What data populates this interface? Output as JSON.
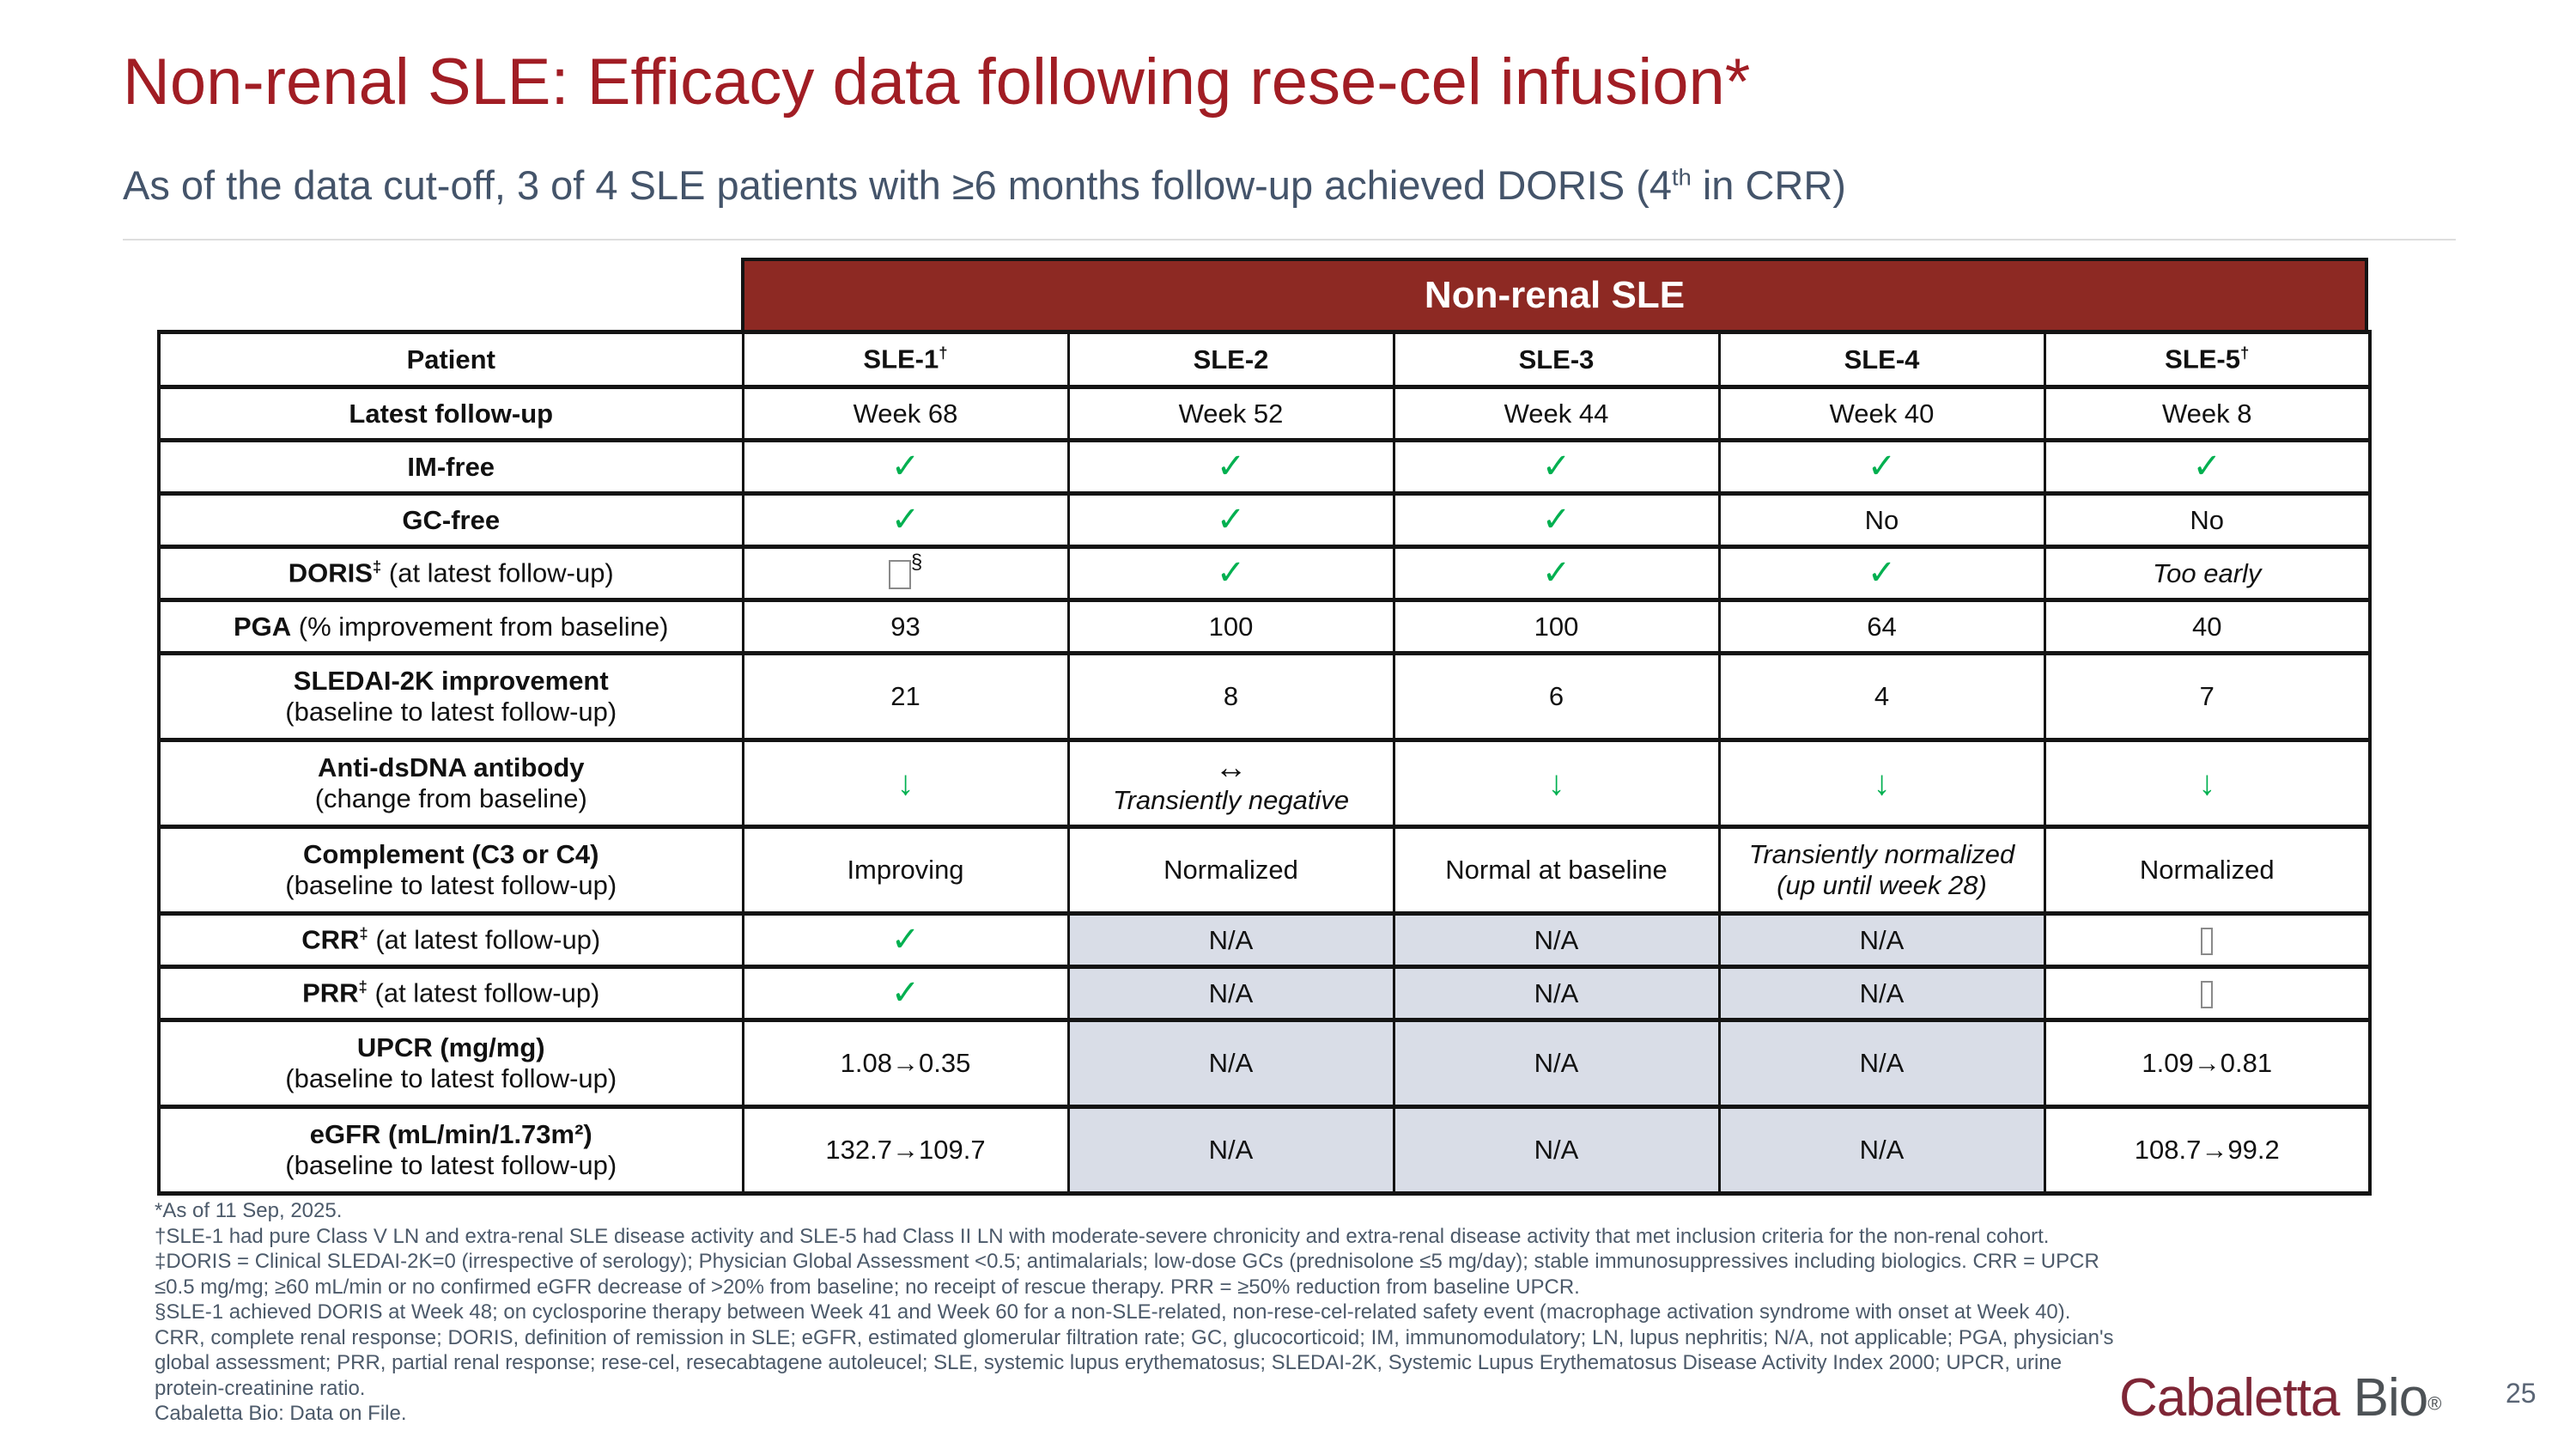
{
  "title": "Non-renal SLE: Efficacy data following rese-cel infusion*",
  "subtitle": {
    "pre": "As of the data cut-off, 3 of 4 SLE patients with ≥6 months follow-up achieved DORIS (4",
    "sup": "th",
    "post": " in CRR)"
  },
  "table": {
    "banner": "Non-renal SLE",
    "columns": [
      {
        "key": "patient",
        "label": "Patient",
        "sup": ""
      },
      {
        "key": "sle-1",
        "label": "SLE-1",
        "sup": "†"
      },
      {
        "key": "sle-2",
        "label": "SLE-2",
        "sup": ""
      },
      {
        "key": "sle-3",
        "label": "SLE-3",
        "sup": ""
      },
      {
        "key": "sle-4",
        "label": "SLE-4",
        "sup": ""
      },
      {
        "key": "sle-5",
        "label": "SLE-5",
        "sup": "†"
      }
    ],
    "rows": [
      {
        "key": "latest-follow-up",
        "label": {
          "b": "Latest follow-up"
        },
        "cells": [
          {
            "t": "text",
            "v": "Week 68"
          },
          {
            "t": "text",
            "v": "Week 52"
          },
          {
            "t": "text",
            "v": "Week 44"
          },
          {
            "t": "text",
            "v": "Week 40"
          },
          {
            "t": "text",
            "v": "Week 8"
          }
        ]
      },
      {
        "key": "im-free",
        "label": {
          "b": "IM-free"
        },
        "cells": [
          {
            "t": "check"
          },
          {
            "t": "check"
          },
          {
            "t": "check"
          },
          {
            "t": "check"
          },
          {
            "t": "check"
          }
        ]
      },
      {
        "key": "gc-free",
        "label": {
          "b": "GC-free"
        },
        "cells": [
          {
            "t": "check"
          },
          {
            "t": "check"
          },
          {
            "t": "check"
          },
          {
            "t": "text",
            "v": "No"
          },
          {
            "t": "text",
            "v": "No"
          }
        ]
      },
      {
        "key": "doris",
        "label": {
          "b": "DORIS",
          "sup": "‡",
          "r": " (at latest follow-up)"
        },
        "cells": [
          {
            "t": "tofu_sup",
            "sup": "§"
          },
          {
            "t": "check"
          },
          {
            "t": "check"
          },
          {
            "t": "check"
          },
          {
            "t": "text",
            "v": "Too early",
            "italic": true
          }
        ]
      },
      {
        "key": "pga",
        "label": {
          "b": "PGA",
          "r": " (% improvement from baseline)"
        },
        "cells": [
          {
            "t": "text",
            "v": "93"
          },
          {
            "t": "text",
            "v": "100"
          },
          {
            "t": "text",
            "v": "100"
          },
          {
            "t": "text",
            "v": "64"
          },
          {
            "t": "text",
            "v": "40"
          }
        ]
      },
      {
        "key": "sledai-2k",
        "label": {
          "b": "SLEDAI-2K improvement",
          "line2": "(baseline to latest follow-up)"
        },
        "cells": [
          {
            "t": "text",
            "v": "21"
          },
          {
            "t": "text",
            "v": "8"
          },
          {
            "t": "text",
            "v": "6"
          },
          {
            "t": "text",
            "v": "4"
          },
          {
            "t": "text",
            "v": "7"
          }
        ]
      },
      {
        "key": "anti-dsdna",
        "label": {
          "b": "Anti-dsDNA antibody",
          "line2": "(change from baseline)"
        },
        "cells": [
          {
            "t": "arrow_down"
          },
          {
            "t": "arrow_lr",
            "v2": "Transiently negative"
          },
          {
            "t": "arrow_down"
          },
          {
            "t": "arrow_down"
          },
          {
            "t": "arrow_down"
          }
        ]
      },
      {
        "key": "complement",
        "label": {
          "b": "Complement (C3 or C4)",
          "line2": "(baseline to latest follow-up)"
        },
        "cells": [
          {
            "t": "text",
            "v": "Improving"
          },
          {
            "t": "text",
            "v": "Normalized"
          },
          {
            "t": "text",
            "v": "Normal at baseline"
          },
          {
            "t": "text",
            "v": "Transiently normalized",
            "v2": "(up until week 28)",
            "italic": true
          },
          {
            "t": "text",
            "v": "Normalized"
          }
        ]
      },
      {
        "key": "crr",
        "label": {
          "b": "CRR",
          "sup": "‡",
          "r": " (at latest follow-up)"
        },
        "cells": [
          {
            "t": "check"
          },
          {
            "t": "text",
            "v": "N/A",
            "shaded": true
          },
          {
            "t": "text",
            "v": "N/A",
            "shaded": true
          },
          {
            "t": "text",
            "v": "N/A",
            "shaded": true
          },
          {
            "t": "tofu"
          }
        ]
      },
      {
        "key": "prr",
        "label": {
          "b": "PRR",
          "sup": "‡",
          "r": " (at latest follow-up)"
        },
        "cells": [
          {
            "t": "check"
          },
          {
            "t": "text",
            "v": "N/A",
            "shaded": true
          },
          {
            "t": "text",
            "v": "N/A",
            "shaded": true
          },
          {
            "t": "text",
            "v": "N/A",
            "shaded": true
          },
          {
            "t": "tofu"
          }
        ]
      },
      {
        "key": "upcr",
        "label": {
          "b": "UPCR (mg/mg)",
          "line2": "(baseline to latest follow-up)"
        },
        "cells": [
          {
            "t": "text",
            "v": "1.08→0.35"
          },
          {
            "t": "text",
            "v": "N/A",
            "shaded": true
          },
          {
            "t": "text",
            "v": "N/A",
            "shaded": true
          },
          {
            "t": "text",
            "v": "N/A",
            "shaded": true
          },
          {
            "t": "text",
            "v": "1.09→0.81"
          }
        ]
      },
      {
        "key": "egfr",
        "label": {
          "b": "eGFR (mL/min/1.73m²)",
          "line2": "(baseline to latest follow-up)"
        },
        "cells": [
          {
            "t": "text",
            "v": "132.7→109.7"
          },
          {
            "t": "text",
            "v": "N/A",
            "shaded": true
          },
          {
            "t": "text",
            "v": "N/A",
            "shaded": true
          },
          {
            "t": "text",
            "v": "N/A",
            "shaded": true
          },
          {
            "t": "text",
            "v": "108.7→99.2"
          }
        ]
      }
    ]
  },
  "footnotes": {
    "lines": [
      "*As of 11 Sep, 2025.",
      "†SLE-1 had pure Class V LN and extra-renal SLE disease activity and SLE-5 had Class II LN with moderate-severe chronicity and extra-renal disease activity that met inclusion criteria for the non-renal cohort.",
      "‡DORIS = Clinical SLEDAI-2K=0 (irrespective of serology); Physician Global Assessment <0.5; antimalarials; low-dose GCs (prednisolone ≤5 mg/day); stable immunosuppressives including biologics. CRR = UPCR",
      "≤0.5 mg/mg; ≥60 mL/min or no confirmed eGFR decrease of >20% from baseline; no receipt of rescue therapy. PRR = ≥50% reduction from baseline UPCR.",
      "§SLE-1 achieved DORIS at Week 48; on cyclosporine therapy between Week 41 and Week 60 for a non-SLE-related, non-rese-cel-related safety event (macrophage activation syndrome with onset at Week 40).",
      "CRR, complete renal response; DORIS, definition of remission in SLE; eGFR, estimated glomerular filtration rate; GC, glucocorticoid; IM, immunomodulatory; LN, lupus nephritis; N/A, not applicable; PGA, physician's",
      "global assessment; PRR, partial renal response; rese-cel, resecabtagene autoleucel; SLE, systemic lupus erythematosus; SLEDAI-2K, Systemic Lupus Erythematosus Disease Activity Index 2000; UPCR, urine",
      "protein-creatinine ratio.",
      "Cabaletta Bio: Data on File."
    ]
  },
  "logo": {
    "brand": "Cabaletta",
    "suffix": " Bio",
    "reg": "®"
  },
  "page": {
    "number": "25"
  },
  "colors": {
    "title_red": "#A11D24",
    "banner_red": "#8D2923",
    "subtitle_blue": "#44546A",
    "check_green": "#00B050",
    "na_shade": "#D9DDE7",
    "logo_red": "#7E2636",
    "logo_gray": "#4D5256"
  }
}
